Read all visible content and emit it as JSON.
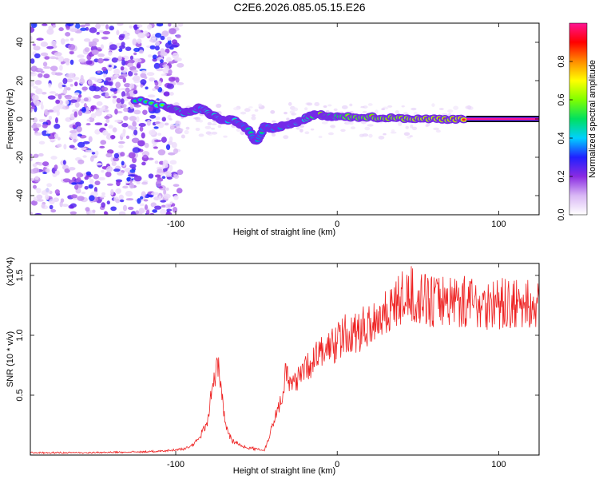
{
  "title": "C2E6.2026.085.05.15.E26",
  "chart_data": [
    {
      "id": "spectrogram",
      "type": "heatmap",
      "xlabel": "Height of straight line (km)",
      "ylabel": "Frequency (Hz)",
      "xlim": [
        -190,
        125
      ],
      "ylim": [
        -50,
        50
      ],
      "xticks": [
        -100,
        0,
        100
      ],
      "xtick_labels": [
        "-100",
        "0",
        "100"
      ],
      "yticks": [
        -40,
        -20,
        0,
        20,
        40
      ],
      "ytick_labels": [
        "-40",
        "-20",
        "0",
        "20",
        "40"
      ],
      "colorbar": {
        "label": "Normalized spectral amplitude",
        "range": [
          0,
          1
        ],
        "ticks": [
          0,
          0.2,
          0.4,
          0.6,
          0.8
        ],
        "tick_labels": [
          "0.0",
          "0.2",
          "0.4",
          "0.6",
          "0.8"
        ],
        "stops": [
          "#ffffff",
          "#d9b8f5",
          "#8a2be2",
          "#2020ff",
          "#00d0ff",
          "#00e060",
          "#7fff00",
          "#ffff00",
          "#ff8c00",
          "#ff0000",
          "#ff1493"
        ]
      },
      "noise_region": {
        "x_range": [
          -190,
          -105
        ],
        "y_range": [
          -50,
          50
        ]
      },
      "signal_track": [
        {
          "x": -125,
          "y": 10,
          "amp": 0.5
        },
        {
          "x": -105,
          "y": 6,
          "amp": 0.6
        },
        {
          "x": -100,
          "y": 5,
          "amp": 0.7
        },
        {
          "x": -95,
          "y": 3,
          "amp": 0.6
        },
        {
          "x": -90,
          "y": 4,
          "amp": 0.7
        },
        {
          "x": -85,
          "y": 6,
          "amp": 0.5
        },
        {
          "x": -80,
          "y": 3,
          "amp": 0.6
        },
        {
          "x": -75,
          "y": 1,
          "amp": 0.6
        },
        {
          "x": -70,
          "y": -1,
          "amp": 0.5
        },
        {
          "x": -65,
          "y": 0,
          "amp": 0.6
        },
        {
          "x": -60,
          "y": -3,
          "amp": 0.5
        },
        {
          "x": -55,
          "y": -6,
          "amp": 0.5
        },
        {
          "x": -50,
          "y": -12,
          "amp": 0.5
        },
        {
          "x": -45,
          "y": -4,
          "amp": 0.5
        },
        {
          "x": -40,
          "y": -5,
          "amp": 0.5
        },
        {
          "x": -35,
          "y": -4,
          "amp": 0.5
        },
        {
          "x": -30,
          "y": -3,
          "amp": 0.55
        },
        {
          "x": -25,
          "y": -2,
          "amp": 0.6
        },
        {
          "x": -20,
          "y": 0,
          "amp": 0.6
        },
        {
          "x": -15,
          "y": 2,
          "amp": 0.7
        },
        {
          "x": -10,
          "y": 2,
          "amp": 0.85
        },
        {
          "x": -5,
          "y": 1,
          "amp": 0.7
        },
        {
          "x": 0,
          "y": 1,
          "amp": 0.7
        },
        {
          "x": 10,
          "y": 1,
          "amp": 0.8
        },
        {
          "x": 20,
          "y": 1,
          "amp": 0.8
        },
        {
          "x": 30,
          "y": 0.5,
          "amp": 0.85
        },
        {
          "x": 40,
          "y": 0.5,
          "amp": 0.85
        },
        {
          "x": 50,
          "y": 0,
          "amp": 0.9
        },
        {
          "x": 60,
          "y": 0,
          "amp": 0.9
        },
        {
          "x": 70,
          "y": 0,
          "amp": 0.9
        },
        {
          "x": 80,
          "y": 0,
          "amp": 0.95
        }
      ],
      "carrier_line": {
        "x_range": [
          80,
          125
        ],
        "y": 0,
        "amp": 1.0
      }
    },
    {
      "id": "snr",
      "type": "line",
      "xlabel": "Height of straight line (km)",
      "ylabel": "SNR (10 * v/v)",
      "y_multiplier_label": "(x10^4)",
      "xlim": [
        -190,
        125
      ],
      "ylim": [
        0,
        1.6
      ],
      "xticks": [
        -100,
        0,
        100
      ],
      "xtick_labels": [
        "-100",
        "0",
        "100"
      ],
      "yticks": [
        0.5,
        1.0,
        1.5
      ],
      "ytick_labels": [
        "0.5",
        "1.0",
        "1.5"
      ],
      "series": [
        {
          "name": "SNR",
          "color": "#ee2222",
          "x": [
            -190,
            -170,
            -150,
            -130,
            -110,
            -95,
            -90,
            -85,
            -80,
            -78,
            -76,
            -74,
            -72,
            -70,
            -68,
            -65,
            -62,
            -60,
            -55,
            -50,
            -45,
            -40,
            -38,
            -35,
            -32,
            -30,
            -28,
            -25,
            -22,
            -20,
            -15,
            -10,
            -5,
            0,
            5,
            10,
            15,
            20,
            25,
            30,
            35,
            40,
            45,
            50,
            55,
            60,
            65,
            70,
            80,
            90,
            100,
            110,
            120,
            125
          ],
          "y": [
            0.02,
            0.02,
            0.02,
            0.025,
            0.03,
            0.05,
            0.08,
            0.15,
            0.3,
            0.5,
            0.65,
            0.75,
            0.55,
            0.35,
            0.2,
            0.12,
            0.1,
            0.08,
            0.06,
            0.05,
            0.04,
            0.25,
            0.35,
            0.45,
            0.7,
            0.6,
            0.55,
            0.65,
            0.75,
            0.7,
            0.8,
            0.85,
            0.9,
            0.95,
            1.0,
            1.0,
            1.05,
            1.1,
            1.15,
            1.2,
            1.25,
            1.3,
            1.35,
            1.3,
            1.3,
            1.28,
            1.3,
            1.3,
            1.28,
            1.27,
            1.26,
            1.25,
            1.25,
            1.22
          ]
        }
      ]
    }
  ]
}
